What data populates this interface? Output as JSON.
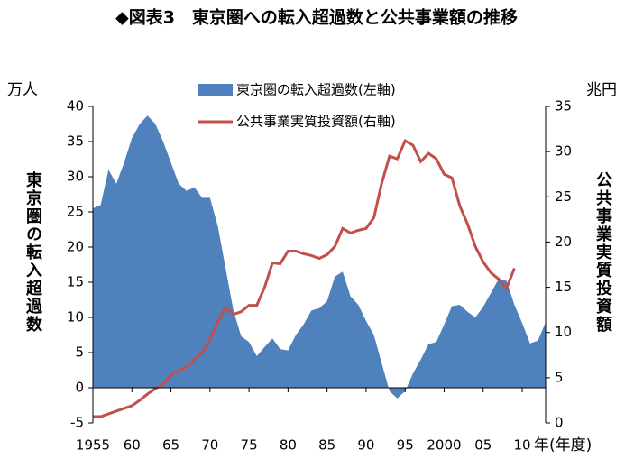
{
  "chart_data": {
    "type": "area_line",
    "title": "◆図表3　東京圏への転入超過数と公共事業額の推移",
    "y_unit": "万人",
    "y2_unit": "兆円",
    "y_label": "東京圏の転入超過数",
    "y2_label": "公共事業実質投資額",
    "x_suffix": "年(年度)",
    "x": [
      1955,
      1956,
      1957,
      1958,
      1959,
      1960,
      1961,
      1962,
      1963,
      1964,
      1965,
      1966,
      1967,
      1968,
      1969,
      1970,
      1971,
      1972,
      1973,
      1974,
      1975,
      1976,
      1977,
      1978,
      1979,
      1980,
      1981,
      1982,
      1983,
      1984,
      1985,
      1986,
      1987,
      1988,
      1989,
      1990,
      1991,
      1992,
      1993,
      1994,
      1995,
      1996,
      1997,
      1998,
      1999,
      2000,
      2001,
      2002,
      2003,
      2004,
      2005,
      2006,
      2007,
      2008,
      2009,
      2010,
      2011,
      2012,
      2013
    ],
    "series": [
      {
        "name": "東京圏の転入超過数(左軸)",
        "color": "#4f81bd",
        "axis": "y",
        "values": [
          25.5,
          26,
          31,
          29,
          32,
          35.5,
          37.5,
          38.7,
          37.5,
          35,
          32,
          29,
          28,
          28.5,
          27,
          27,
          23,
          17,
          11,
          7.3,
          6.5,
          4.5,
          5.8,
          7,
          5.5,
          5.3,
          7.5,
          9,
          11,
          11.3,
          12.3,
          15.8,
          16.5,
          13,
          11.8,
          9.5,
          7.5,
          3.5,
          -0.5,
          -1.5,
          -0.5,
          2,
          4,
          6.2,
          6.5,
          9,
          11.6,
          11.8,
          10.8,
          10,
          11.5,
          13.5,
          15.5,
          15.2,
          11.8,
          9.2,
          6.3,
          6.7,
          9.3
        ]
      },
      {
        "name": "公共事業実質投資額(右軸)",
        "color": "#c0504d",
        "axis": "y2",
        "values": [
          0.7,
          0.7,
          1.0,
          1.3,
          1.6,
          1.9,
          2.5,
          3.2,
          3.8,
          4.3,
          5.3,
          5.8,
          6.2,
          7,
          7.8,
          9.2,
          11.2,
          12.8,
          12,
          12.3,
          13,
          13,
          15,
          17.7,
          17.6,
          19,
          19,
          18.7,
          18.5,
          18.2,
          18.6,
          19.5,
          21.5,
          21,
          21.3,
          21.5,
          22.7,
          26.5,
          29.5,
          29.2,
          31.2,
          30.7,
          28.9,
          29.8,
          29.2,
          27.5,
          27.1,
          24,
          22,
          19.5,
          17.8,
          16.6,
          15.9,
          14.9,
          17.1,
          null,
          null,
          null,
          null
        ]
      }
    ],
    "xlim": [
      1955,
      2013
    ],
    "xticks": [
      1955,
      {
        "value": 1960,
        "label": "60"
      },
      {
        "value": 1965,
        "label": "65"
      },
      {
        "value": 1970,
        "label": "70"
      },
      {
        "value": 1975,
        "label": "75"
      },
      {
        "value": 1980,
        "label": "80"
      },
      {
        "value": 1985,
        "label": "85"
      },
      {
        "value": 1990,
        "label": "90"
      },
      {
        "value": 1995,
        "label": "95"
      },
      2000,
      {
        "value": 2005,
        "label": "05"
      },
      {
        "value": 2010,
        "label": "10"
      }
    ],
    "ylim": [
      -5,
      40
    ],
    "yticks": [
      -5,
      0,
      5,
      10,
      15,
      20,
      25,
      30,
      35,
      40
    ],
    "y2lim": [
      0,
      35
    ],
    "y2ticks": [
      0,
      5,
      10,
      15,
      20,
      25,
      30,
      35
    ]
  }
}
